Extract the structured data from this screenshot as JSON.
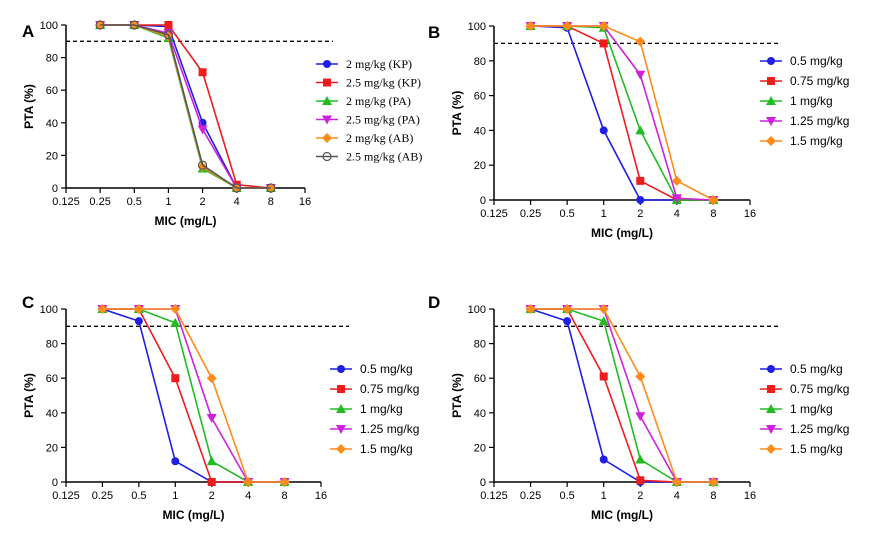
{
  "chart_data": [
    {
      "panel": "A",
      "type": "line",
      "xlabel": "MIC (mg/L)",
      "ylabel": "PTA (%)",
      "xscale": "log2",
      "x_ticks": [
        "0.125",
        "0.25",
        "0.5",
        "1",
        "2",
        "4",
        "8",
        "16"
      ],
      "x_tick_values": [
        0.125,
        0.25,
        0.5,
        1,
        2,
        4,
        8,
        16
      ],
      "y_ticks": [
        "0",
        "20",
        "40",
        "60",
        "80",
        "100"
      ],
      "ylim": [
        0,
        100
      ],
      "threshold": 90,
      "legend_font": "serif",
      "x": [
        0.25,
        0.5,
        1,
        2,
        4,
        8
      ],
      "series": [
        {
          "name": "2 mg/kg (KP)",
          "color": "#1f1fe6",
          "marker": "circle",
          "values": [
            100,
            100,
            99,
            40,
            0,
            0
          ]
        },
        {
          "name": "2.5 mg/kg (KP)",
          "color": "#ee1c1c",
          "marker": "square",
          "values": [
            100,
            100,
            100,
            71,
            2,
            0
          ]
        },
        {
          "name": "2 mg/kg (PA)",
          "color": "#22bb22",
          "marker": "triangle-up",
          "values": [
            100,
            100,
            92,
            12,
            0,
            0
          ]
        },
        {
          "name": "2.5 mg/kg (PA)",
          "color": "#cc22dd",
          "marker": "triangle-down",
          "values": [
            100,
            100,
            95,
            36,
            0,
            0
          ]
        },
        {
          "name": "2 mg/kg (AB)",
          "color": "#ff8c1a",
          "marker": "diamond",
          "values": [
            100,
            100,
            93,
            13,
            0,
            0
          ]
        },
        {
          "name": "2.5 mg/kg (AB)",
          "color": "#555555",
          "marker": "open-circle",
          "values": [
            100,
            100,
            94,
            14,
            0,
            0
          ]
        }
      ]
    },
    {
      "panel": "B",
      "type": "line",
      "xlabel": "MIC (mg/L)",
      "ylabel": "PTA (%)",
      "xscale": "log2",
      "x_ticks": [
        "0.125",
        "0.25",
        "0.5",
        "1",
        "2",
        "4",
        "8",
        "16"
      ],
      "x_tick_values": [
        0.125,
        0.25,
        0.5,
        1,
        2,
        4,
        8,
        16
      ],
      "y_ticks": [
        "0",
        "20",
        "40",
        "60",
        "80",
        "100"
      ],
      "ylim": [
        0,
        100
      ],
      "threshold": 90,
      "legend_font": "sans",
      "x": [
        0.25,
        0.5,
        1,
        2,
        4,
        8
      ],
      "series": [
        {
          "name": "0.5 mg/kg",
          "color": "#1f1fe6",
          "marker": "circle",
          "values": [
            100,
            99,
            40,
            0,
            0,
            0
          ]
        },
        {
          "name": "0.75 mg/kg",
          "color": "#ee1c1c",
          "marker": "square",
          "values": [
            100,
            100,
            90,
            11,
            0,
            0
          ]
        },
        {
          "name": "1 mg/kg",
          "color": "#22bb22",
          "marker": "triangle-up",
          "values": [
            100,
            100,
            99,
            40,
            0,
            0
          ]
        },
        {
          "name": "1.25 mg/kg",
          "color": "#cc22dd",
          "marker": "triangle-down",
          "values": [
            100,
            100,
            100,
            72,
            1,
            0
          ]
        },
        {
          "name": "1.5 mg/kg",
          "color": "#ff8c1a",
          "marker": "diamond",
          "values": [
            100,
            100,
            100,
            91,
            11,
            0
          ]
        }
      ]
    },
    {
      "panel": "C",
      "type": "line",
      "xlabel": "MIC (mg/L)",
      "ylabel": "PTA (%)",
      "xscale": "log2",
      "x_ticks": [
        "0.125",
        "0.25",
        "0.5",
        "1",
        "2",
        "4",
        "8",
        "16"
      ],
      "x_tick_values": [
        0.125,
        0.25,
        0.5,
        1,
        2,
        4,
        8,
        16
      ],
      "y_ticks": [
        "0",
        "20",
        "40",
        "60",
        "80",
        "100"
      ],
      "ylim": [
        0,
        100
      ],
      "threshold": 90,
      "legend_font": "sans",
      "x": [
        0.25,
        0.5,
        1,
        2,
        4,
        8
      ],
      "series": [
        {
          "name": "0.5 mg/kg",
          "color": "#1f1fe6",
          "marker": "circle",
          "values": [
            100,
            93,
            12,
            0,
            0,
            0
          ]
        },
        {
          "name": "0.75 mg/kg",
          "color": "#ee1c1c",
          "marker": "square",
          "values": [
            100,
            100,
            60,
            0,
            0,
            0
          ]
        },
        {
          "name": "1 mg/kg",
          "color": "#22bb22",
          "marker": "triangle-up",
          "values": [
            100,
            100,
            92,
            12,
            0,
            0
          ]
        },
        {
          "name": "1.25 mg/kg",
          "color": "#cc22dd",
          "marker": "triangle-down",
          "values": [
            100,
            100,
            100,
            37,
            0,
            0
          ]
        },
        {
          "name": "1.5 mg/kg",
          "color": "#ff8c1a",
          "marker": "diamond",
          "values": [
            100,
            100,
            100,
            60,
            0,
            0
          ]
        }
      ]
    },
    {
      "panel": "D",
      "type": "line",
      "xlabel": "MIC (mg/L)",
      "ylabel": "PTA (%)",
      "xscale": "log2",
      "x_ticks": [
        "0.125",
        "0.25",
        "0.5",
        "1",
        "2",
        "4",
        "8",
        "16"
      ],
      "x_tick_values": [
        0.125,
        0.25,
        0.5,
        1,
        2,
        4,
        8,
        16
      ],
      "y_ticks": [
        "0",
        "20",
        "40",
        "60",
        "80",
        "100"
      ],
      "ylim": [
        0,
        100
      ],
      "threshold": 90,
      "legend_font": "sans",
      "x": [
        0.25,
        0.5,
        1,
        2,
        4,
        8
      ],
      "series": [
        {
          "name": "0.5 mg/kg",
          "color": "#1f1fe6",
          "marker": "circle",
          "values": [
            100,
            93,
            13,
            0,
            0,
            0
          ]
        },
        {
          "name": "0.75 mg/kg",
          "color": "#ee1c1c",
          "marker": "square",
          "values": [
            100,
            100,
            61,
            1,
            0,
            0
          ]
        },
        {
          "name": "1 mg/kg",
          "color": "#22bb22",
          "marker": "triangle-up",
          "values": [
            100,
            100,
            93,
            13,
            0,
            0
          ]
        },
        {
          "name": "1.25 mg/kg",
          "color": "#cc22dd",
          "marker": "triangle-down",
          "values": [
            100,
            100,
            100,
            38,
            0,
            0
          ]
        },
        {
          "name": "1.5 mg/kg",
          "color": "#ff8c1a",
          "marker": "diamond",
          "values": [
            100,
            100,
            100,
            61,
            0,
            0
          ]
        }
      ]
    }
  ]
}
